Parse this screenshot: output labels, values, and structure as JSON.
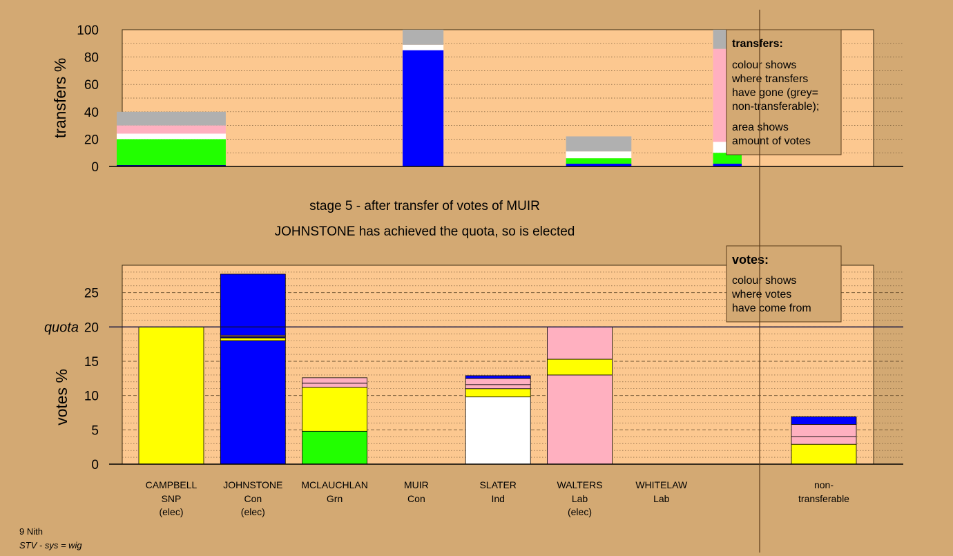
{
  "colors": {
    "background": "#d3a973",
    "plot_fill": "#fcc890",
    "SNP": "#ffff00",
    "Con": "#0000ff",
    "Grn": "#22ff00",
    "Ind": "#ffffff",
    "Lab": "#ffb0c0",
    "non_transferable": "#b0b0b0",
    "dark_navy": "#000080"
  },
  "headline": {
    "stage": "stage 5 - after transfer of votes of MUIR",
    "result": "JOHNSTONE has achieved the quota, so is elected"
  },
  "footer": {
    "ward": "9 Nith",
    "system": "STV - sys = wig"
  },
  "legend_transfers": {
    "title": "transfers:",
    "lines": [
      "colour shows",
      "where transfers",
      "have gone (grey=",
      "non-transferable);"
    ],
    "lines2": [
      "area shows",
      "amount of votes"
    ]
  },
  "legend_votes": {
    "title": "votes:",
    "lines": [
      "colour shows",
      "where votes",
      "have come from"
    ]
  },
  "candidates": [
    {
      "name": "CAMPBELL",
      "party": "SNP",
      "status": "(elec)"
    },
    {
      "name": "JOHNSTONE",
      "party": "Con",
      "status": "(elec)"
    },
    {
      "name": "MCLAUCHLAN",
      "party": "Grn",
      "status": ""
    },
    {
      "name": "MUIR",
      "party": "Con",
      "status": ""
    },
    {
      "name": "SLATER",
      "party": "Ind",
      "status": ""
    },
    {
      "name": "WALTERS",
      "party": "Lab",
      "status": "(elec)"
    },
    {
      "name": "WHITELAW",
      "party": "Lab",
      "status": ""
    }
  ],
  "nontransferable_label": [
    "non-",
    "transferable"
  ],
  "chart_data": [
    {
      "type": "bar",
      "stacked": true,
      "ylabel": "transfers %",
      "ylim": [
        0,
        100
      ],
      "yticks": [
        0,
        20,
        40,
        60,
        80,
        100
      ],
      "bars": [
        {
          "slot": 0,
          "width_slots": 1.5,
          "segments": [
            {
              "color": "#000080",
              "value": 1
            },
            {
              "color": "#22ff00",
              "value": 19
            },
            {
              "color": "#ffffff",
              "value": 4
            },
            {
              "color": "#ffb0c0",
              "value": 6
            },
            {
              "color": "#b0b0b0",
              "value": 10
            }
          ]
        },
        {
          "slot": 3.5,
          "width_slots": 0.5,
          "segments": [
            {
              "color": "#0000ff",
              "value": 85
            },
            {
              "color": "#ffffff",
              "value": 4
            },
            {
              "color": "#b0b0b0",
              "value": 11
            }
          ]
        },
        {
          "slot": 5.5,
          "width_slots": 0.8,
          "segments": [
            {
              "color": "#0000ff",
              "value": 2
            },
            {
              "color": "#22ff00",
              "value": 4
            },
            {
              "color": "#ffffff",
              "value": 5
            },
            {
              "color": "#b0b0b0",
              "value": 11
            }
          ]
        },
        {
          "slot": 7.3,
          "width_slots": 0.35,
          "segments": [
            {
              "color": "#0000ff",
              "value": 2
            },
            {
              "color": "#22ff00",
              "value": 8
            },
            {
              "color": "#ffffff",
              "value": 8
            },
            {
              "color": "#ffb0c0",
              "value": 68
            },
            {
              "color": "#b0b0b0",
              "value": 14
            }
          ]
        }
      ]
    },
    {
      "type": "bar",
      "stacked": true,
      "ylabel": "votes %",
      "ylim": [
        0,
        29
      ],
      "yticks": [
        0,
        5,
        10,
        15,
        20,
        25
      ],
      "quota": 20,
      "quota_label": "quota",
      "bars": [
        {
          "candidate": "CAMPBELL",
          "segments": [
            {
              "color": "#ffff00",
              "value": 20
            }
          ]
        },
        {
          "candidate": "JOHNSTONE",
          "segments": [
            {
              "color": "#0000ff",
              "value": 18
            },
            {
              "color": "#ffff00",
              "value": 0.4
            },
            {
              "color": "#000080",
              "value": 0.2
            },
            {
              "color": "#ffb0c0",
              "value": 0.2
            },
            {
              "color": "#0000ff",
              "value": 8.9
            }
          ]
        },
        {
          "candidate": "MCLAUCHLAN",
          "segments": [
            {
              "color": "#22ff00",
              "value": 4.8
            },
            {
              "color": "#ffff00",
              "value": 6.4
            },
            {
              "color": "#ffb0c0",
              "value": 0.6
            },
            {
              "color": "#ffb0c0",
              "value": 0.8
            }
          ]
        },
        {
          "candidate": "MUIR",
          "segments": []
        },
        {
          "candidate": "SLATER",
          "segments": [
            {
              "color": "#ffffff",
              "value": 9.8
            },
            {
              "color": "#ffff00",
              "value": 1.2
            },
            {
              "color": "#ffb0c0",
              "value": 0.6
            },
            {
              "color": "#ffb0c0",
              "value": 0.9
            },
            {
              "color": "#0000ff",
              "value": 0.4
            }
          ]
        },
        {
          "candidate": "WALTERS",
          "segments": [
            {
              "color": "#ffb0c0",
              "value": 13
            },
            {
              "color": "#ffff00",
              "value": 2.3
            },
            {
              "color": "#ffb0c0",
              "value": 4.7
            }
          ]
        },
        {
          "candidate": "WHITELAW",
          "segments": []
        },
        {
          "candidate": "non-transferable",
          "segments": [
            {
              "color": "#ffff00",
              "value": 2.9
            },
            {
              "color": "#ffb0c0",
              "value": 1.1
            },
            {
              "color": "#ffb0c0",
              "value": 1.8
            },
            {
              "color": "#0000ff",
              "value": 1.1
            }
          ]
        }
      ]
    }
  ]
}
